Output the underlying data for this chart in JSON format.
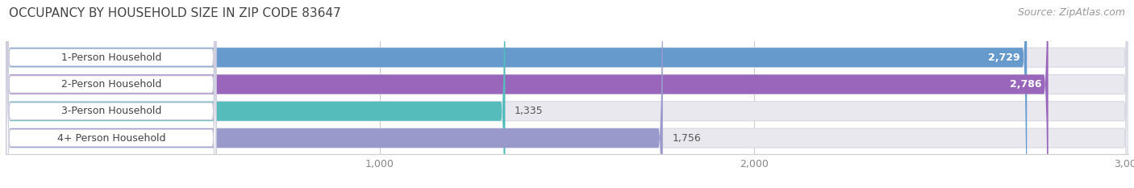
{
  "title": "OCCUPANCY BY HOUSEHOLD SIZE IN ZIP CODE 83647",
  "source": "Source: ZipAtlas.com",
  "categories": [
    "1-Person Household",
    "2-Person Household",
    "3-Person Household",
    "4+ Person Household"
  ],
  "values": [
    2729,
    2786,
    1335,
    1756
  ],
  "bar_colors": [
    "#6699cc",
    "#9966bb",
    "#55bbbb",
    "#9999cc"
  ],
  "xlim": [
    0,
    3000
  ],
  "xticks": [
    1000,
    2000,
    3000
  ],
  "xtick_labels": [
    "1,000",
    "2,000",
    "3,000"
  ],
  "value_labels": [
    "2,729",
    "2,786",
    "1,335",
    "1,756"
  ],
  "background_color": "#ffffff",
  "track_color": "#e8e8ee",
  "track_edge_color": "#d8d8e4",
  "title_fontsize": 11,
  "source_fontsize": 9,
  "label_fontsize": 9,
  "value_fontsize": 9,
  "tick_fontsize": 9,
  "bar_height": 0.72
}
